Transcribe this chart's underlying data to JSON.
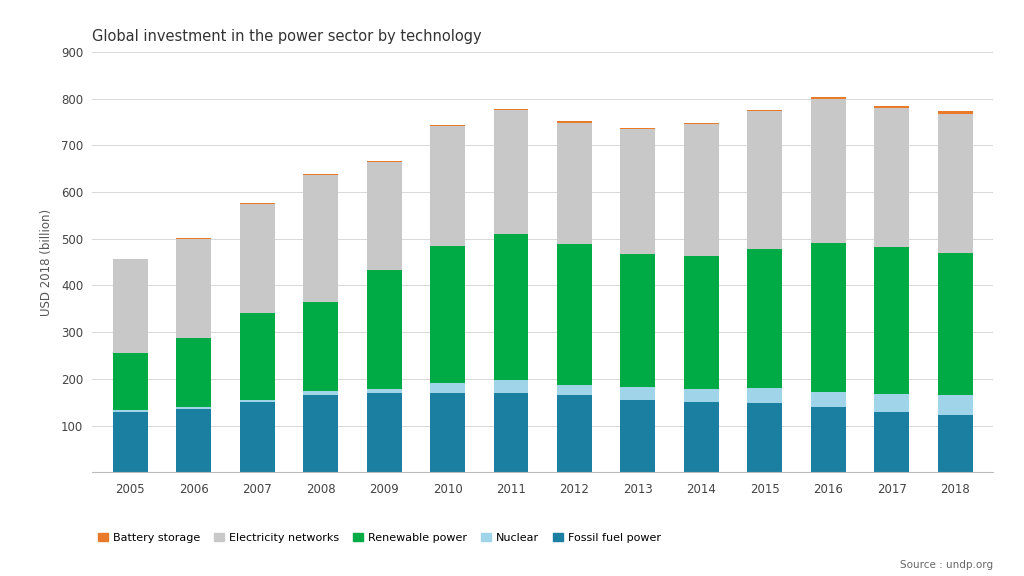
{
  "title": "Global investment in the power sector by technology",
  "ylabel": "USD 2018 (billion)",
  "source": "Source : undp.org",
  "years": [
    2005,
    2006,
    2007,
    2008,
    2009,
    2010,
    2011,
    2012,
    2013,
    2014,
    2015,
    2016,
    2017,
    2018
  ],
  "colors": {
    "Fossil fuel power": "#1a7fa0",
    "Nuclear": "#a0d4e8",
    "Renewable power": "#00aa44",
    "Electricity networks": "#c8c8c8",
    "Battery storage": "#e87a2a"
  },
  "data": {
    "Fossil fuel power": [
      130,
      135,
      150,
      165,
      170,
      170,
      170,
      165,
      155,
      150,
      148,
      140,
      130,
      123
    ],
    "Nuclear": [
      4,
      4,
      4,
      8,
      8,
      22,
      28,
      22,
      28,
      28,
      32,
      32,
      38,
      42
    ],
    "Renewable power": [
      122,
      148,
      188,
      192,
      254,
      292,
      312,
      302,
      284,
      284,
      298,
      318,
      314,
      304
    ],
    "Electricity networks": [
      200,
      213,
      233,
      272,
      233,
      258,
      265,
      258,
      268,
      283,
      295,
      308,
      298,
      298
    ],
    "Battery storage": [
      1,
      1,
      1,
      1,
      1,
      2,
      3,
      4,
      3,
      3,
      3,
      5,
      5,
      7
    ]
  },
  "ylim": [
    0,
    900
  ],
  "yticks": [
    0,
    100,
    200,
    300,
    400,
    500,
    600,
    700,
    800,
    900
  ],
  "background_color": "#ffffff",
  "grid_color": "#d8d8d8",
  "title_fontsize": 10.5,
  "axis_fontsize": 8.5,
  "legend_fontsize": 8.0
}
